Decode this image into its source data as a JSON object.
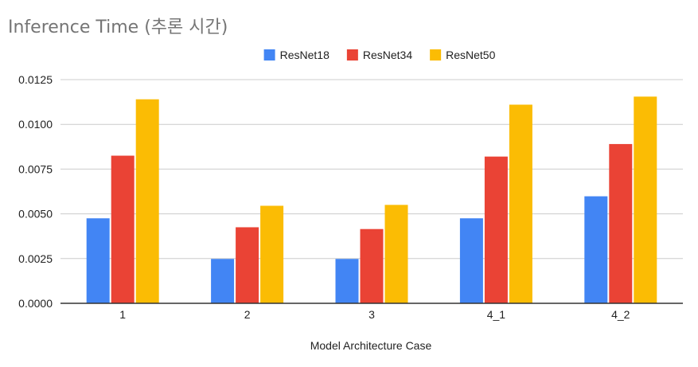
{
  "chart_data": {
    "type": "bar",
    "title": "Inference Time (추론 시간)",
    "xlabel": "Model Architecture Case",
    "ylabel": "",
    "categories": [
      "1",
      "2",
      "3",
      "4_1",
      "4_2"
    ],
    "series": [
      {
        "name": "ResNet18",
        "color": "#4285f4",
        "values": [
          0.00475,
          0.00248,
          0.00248,
          0.00475,
          0.00598
        ]
      },
      {
        "name": "ResNet34",
        "color": "#ea4335",
        "values": [
          0.00825,
          0.00425,
          0.00415,
          0.0082,
          0.0089
        ]
      },
      {
        "name": "ResNet50",
        "color": "#fbbc04",
        "values": [
          0.0114,
          0.00545,
          0.0055,
          0.0111,
          0.01155
        ]
      }
    ],
    "ylim": [
      0,
      0.0125
    ],
    "y_ticks": [
      "0.0000",
      "0.0025",
      "0.0050",
      "0.0075",
      "0.0100",
      "0.0125"
    ],
    "y_tick_values": [
      0,
      0.0025,
      0.005,
      0.0075,
      0.01,
      0.0125
    ],
    "grid": true,
    "legend_position": "top-center"
  }
}
